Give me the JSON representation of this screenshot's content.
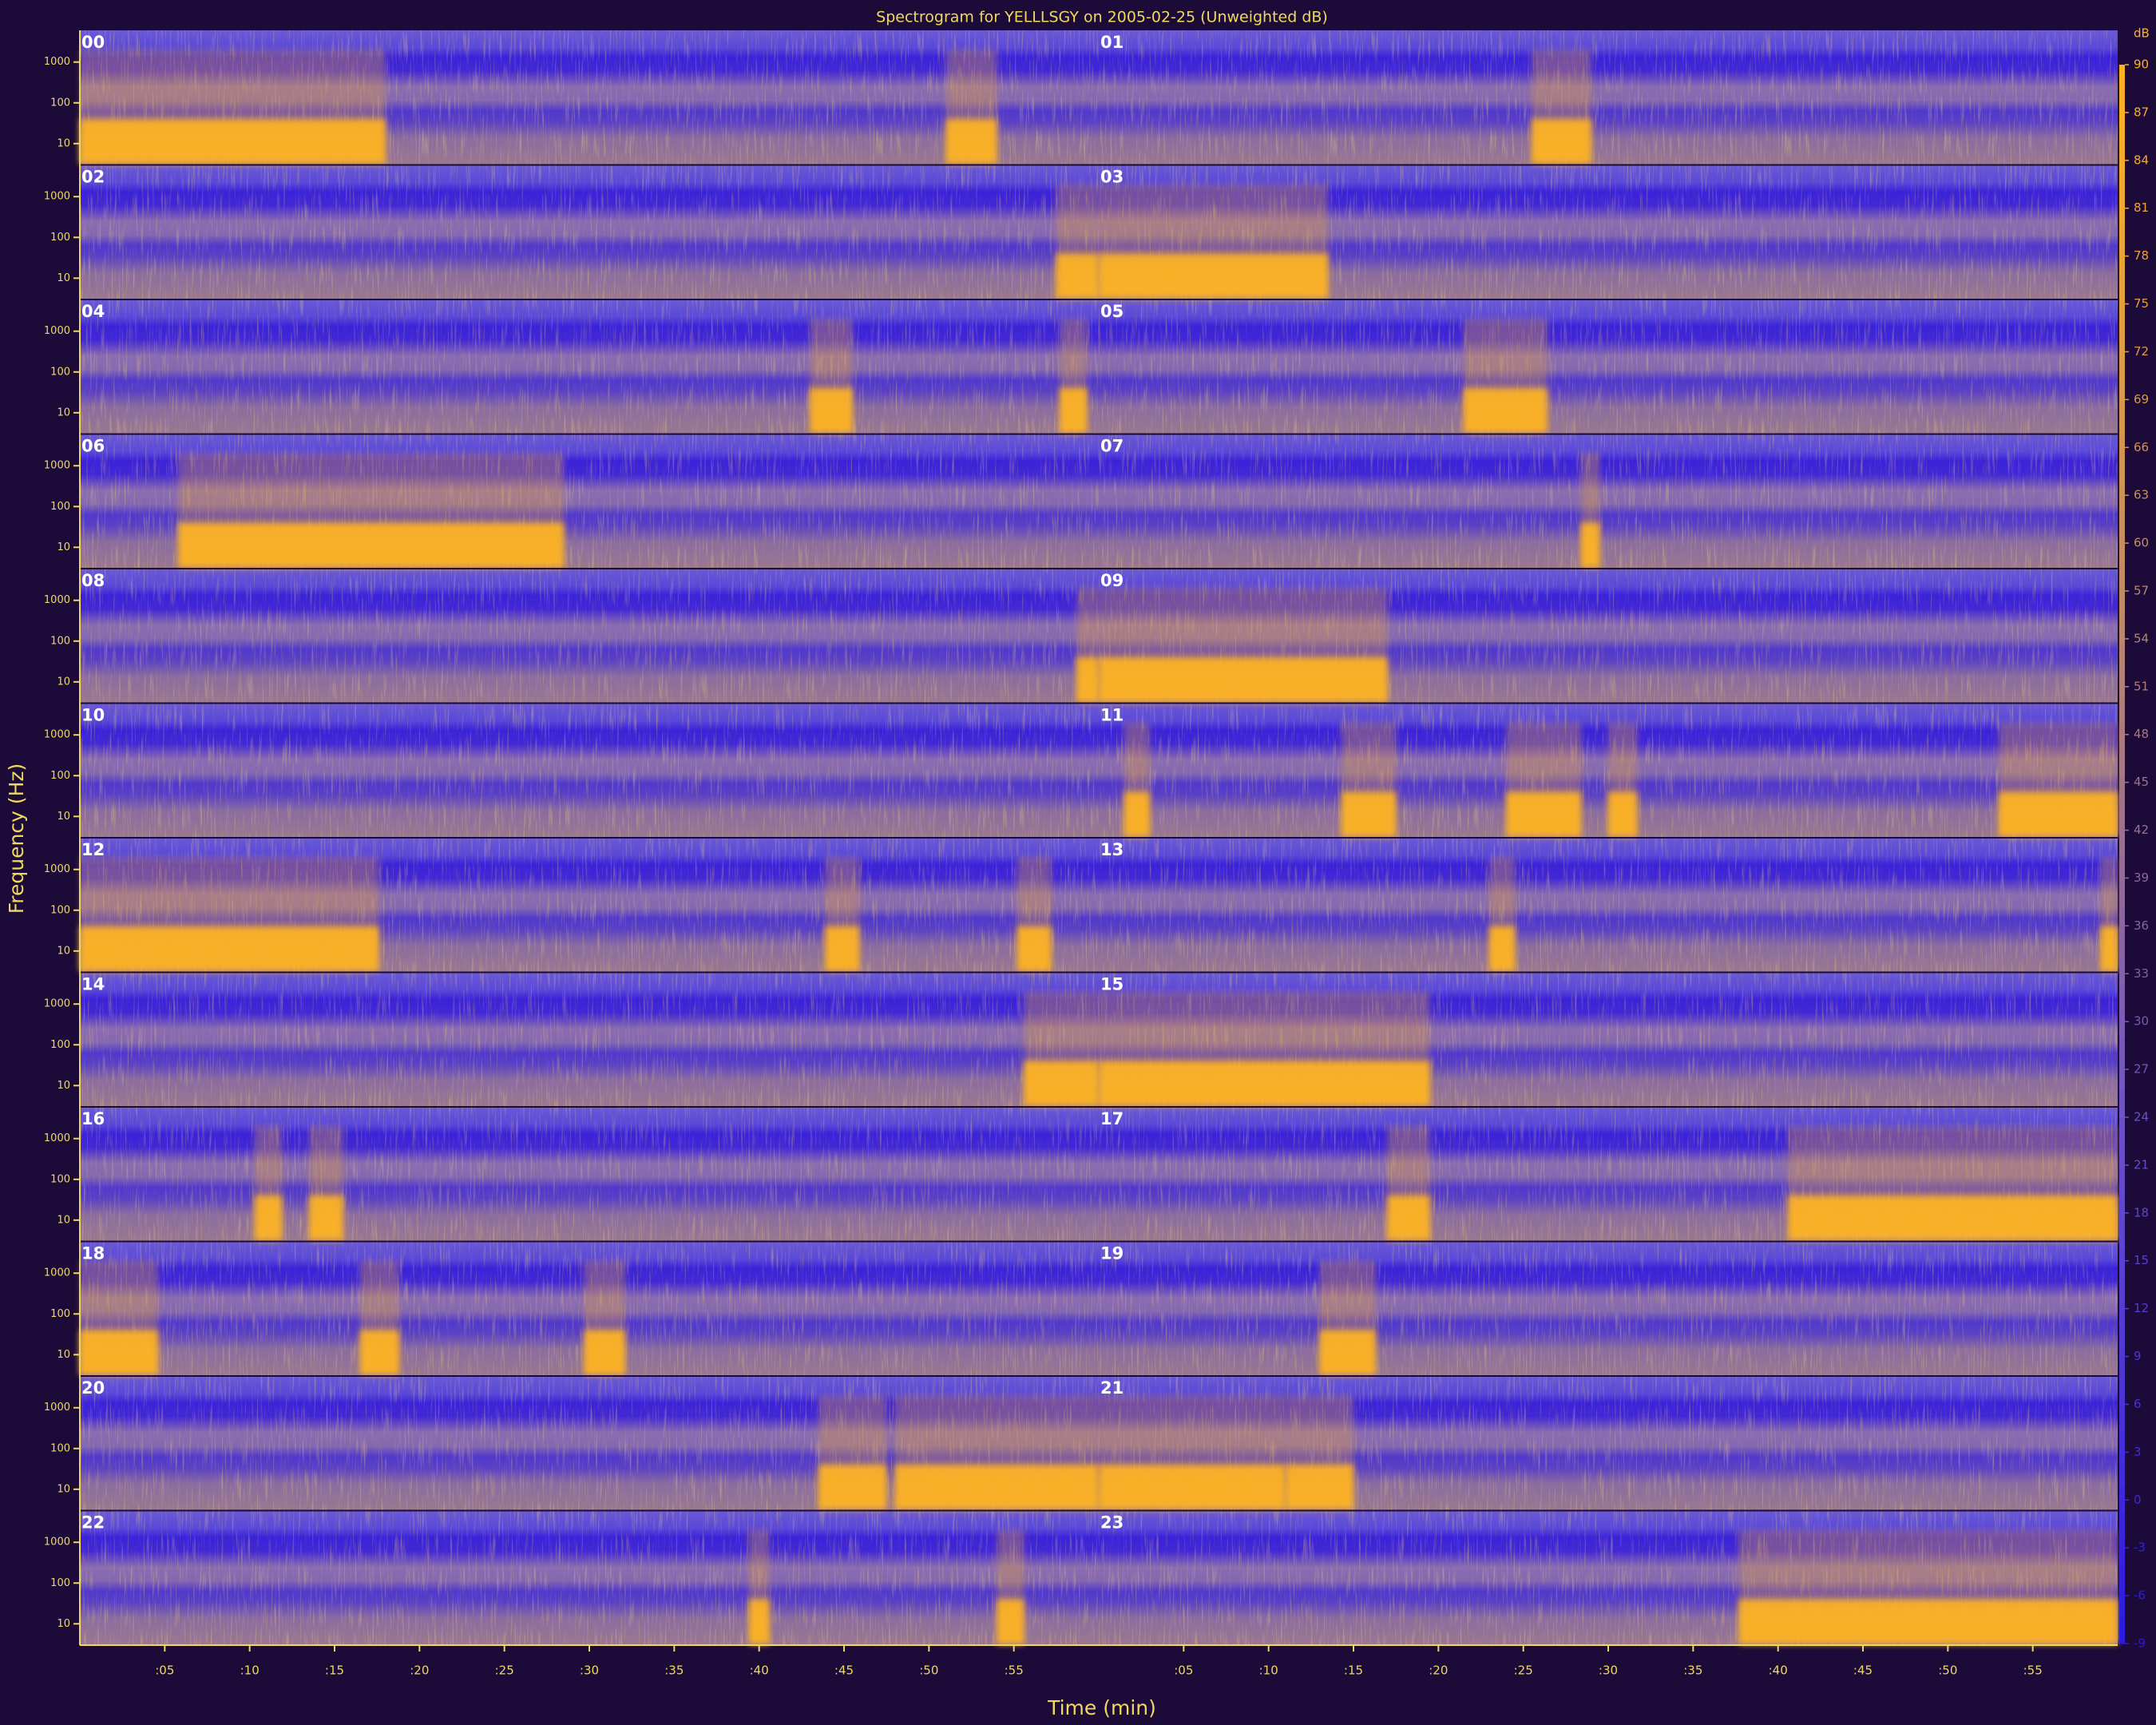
{
  "chart_data": {
    "type": "spectrogram",
    "title": "Spectrogram for YELLLSGY on 2005-02-25 (Unweighted dB)",
    "x_label": "Time (min)",
    "y_label": "Frequency (Hz)",
    "colorbar_label": "dB",
    "xlim": [
      0,
      60
    ],
    "xticks": [
      {
        "value": 5,
        "label": ":05"
      },
      {
        "value": 10,
        "label": ":10"
      },
      {
        "value": 15,
        "label": ":15"
      },
      {
        "value": 20,
        "label": ":20"
      },
      {
        "value": 25,
        "label": ":25"
      },
      {
        "value": 30,
        "label": ":30"
      },
      {
        "value": 35,
        "label": ":35"
      },
      {
        "value": 40,
        "label": ":40"
      },
      {
        "value": 45,
        "label": ":45"
      },
      {
        "value": 50,
        "label": ":50"
      },
      {
        "value": 55,
        "label": ":55"
      }
    ],
    "ylim": [
      3,
      6000
    ],
    "yscale": "log",
    "yticks": [
      10,
      100,
      1000
    ],
    "zlim": [
      -9,
      90
    ],
    "zticks": [
      90,
      87,
      84,
      81,
      78,
      75,
      72,
      69,
      66,
      63,
      60,
      57,
      54,
      51,
      48,
      45,
      42,
      39,
      36,
      33,
      30,
      27,
      24,
      21,
      18,
      15,
      12,
      9,
      6,
      3,
      0,
      -3,
      -6,
      -9
    ],
    "colormap": [
      "#2a18e0",
      "#6a50c8",
      "#c08868",
      "#ffb020"
    ],
    "panels": [
      {
        "label": "00",
        "events": [
          [
            0,
            18
          ],
          [
            51,
            54
          ]
        ]
      },
      {
        "label": "01",
        "events": [
          [
            25.5,
            29
          ]
        ]
      },
      {
        "label": "02",
        "events": [
          [
            57.5,
            60
          ]
        ]
      },
      {
        "label": "03",
        "events": [
          [
            0,
            13.5
          ]
        ]
      },
      {
        "label": "04",
        "events": [
          [
            43,
            45.5
          ],
          [
            57.7,
            59.3
          ]
        ]
      },
      {
        "label": "05",
        "events": [
          [
            21.5,
            26.4
          ]
        ]
      },
      {
        "label": "06",
        "events": [
          [
            5.8,
            28.5
          ]
        ]
      },
      {
        "label": "07",
        "events": [
          [
            28.4,
            29.5
          ]
        ]
      },
      {
        "label": "08",
        "events": [
          [
            58.7,
            60
          ]
        ]
      },
      {
        "label": "09",
        "events": [
          [
            0,
            17
          ]
        ]
      },
      {
        "label": "10",
        "events": []
      },
      {
        "label": "11",
        "events": [
          [
            1.5,
            3
          ],
          [
            14.3,
            17.5
          ],
          [
            24,
            28.4
          ],
          [
            30,
            31.7
          ],
          [
            53,
            60
          ]
        ]
      },
      {
        "label": "12",
        "events": [
          [
            0,
            17.6
          ],
          [
            43.9,
            45.9
          ],
          [
            55.2,
            57.2
          ]
        ]
      },
      {
        "label": "13",
        "events": [
          [
            23,
            24.5
          ],
          [
            59,
            60
          ]
        ]
      },
      {
        "label": "14",
        "events": [
          [
            55.6,
            60
          ]
        ]
      },
      {
        "label": "15",
        "events": [
          [
            0,
            19.5
          ]
        ]
      },
      {
        "label": "16",
        "events": [
          [
            10.3,
            11.9
          ],
          [
            13.5,
            15.5
          ]
        ]
      },
      {
        "label": "17",
        "events": [
          [
            17,
            19.5
          ],
          [
            40.6,
            60
          ]
        ]
      },
      {
        "label": "18",
        "events": [
          [
            0,
            4.6
          ],
          [
            16.5,
            18.8
          ],
          [
            29.7,
            32.1
          ]
        ]
      },
      {
        "label": "19",
        "events": [
          [
            13,
            16.3
          ]
        ]
      },
      {
        "label": "20",
        "events": [
          [
            43.5,
            47.5
          ],
          [
            48,
            60
          ]
        ]
      },
      {
        "label": "21",
        "events": [
          [
            0,
            11
          ],
          [
            11,
            15
          ]
        ]
      },
      {
        "label": "22",
        "events": [
          [
            39.4,
            40.6
          ],
          [
            54,
            55.6
          ]
        ]
      },
      {
        "label": "23",
        "events": [
          [
            37.7,
            60
          ]
        ]
      }
    ]
  }
}
